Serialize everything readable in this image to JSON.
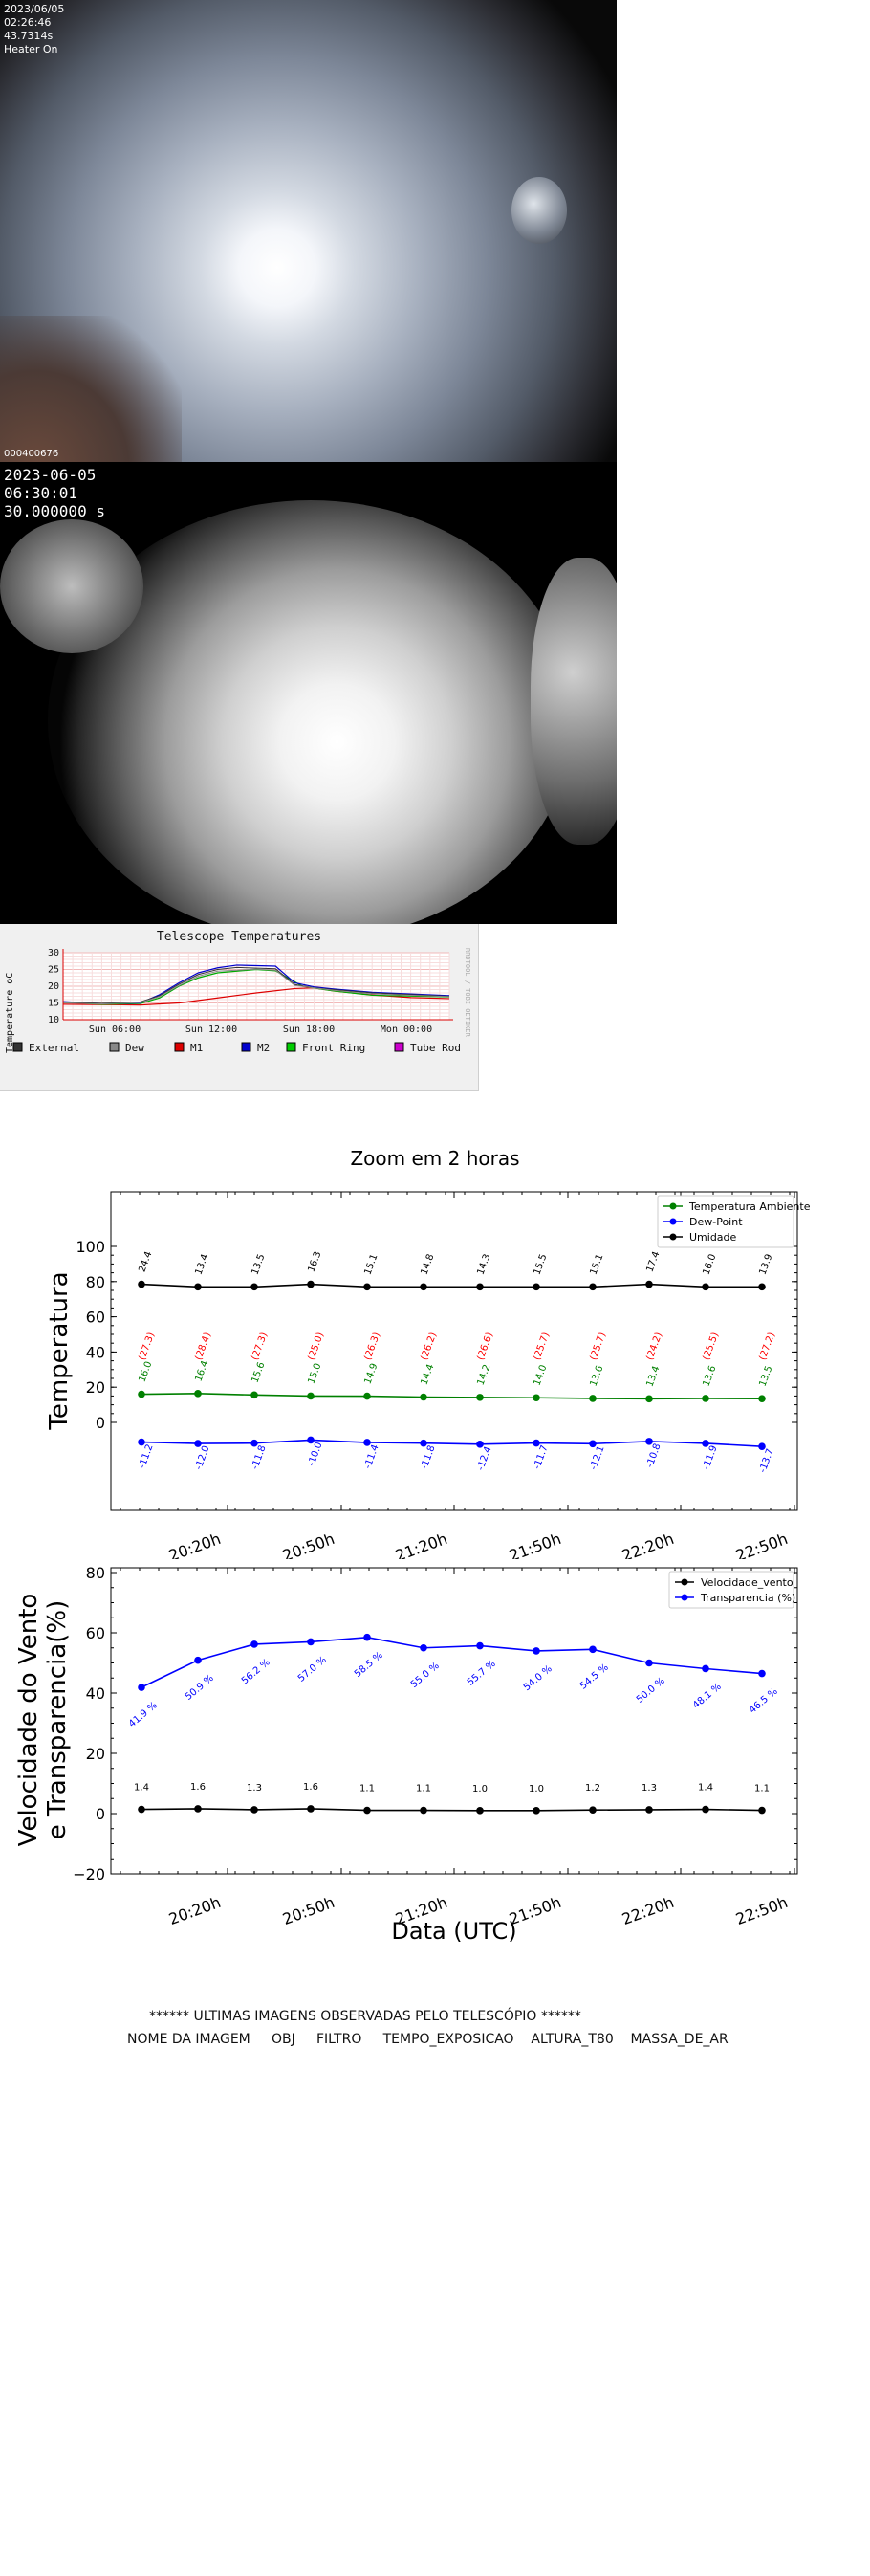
{
  "camera1": {
    "date": "2023/06/05",
    "time": "02:26:46",
    "exposure": "43.7314s",
    "heater": "Heater On",
    "frame_id": "000400676"
  },
  "camera2": {
    "date": "2023-06-05",
    "time": "06:30:01",
    "exposure": "30.000000 s"
  },
  "telescope": {
    "title": "Telescope Temperatures",
    "ylabel": "Temperature oC",
    "watermark": "RRDTOOL / TOBI OETIKER",
    "yticks": [
      "30",
      "25",
      "20",
      "15",
      "10"
    ],
    "xticks": [
      "Sun 06:00",
      "Sun 12:00",
      "Sun 18:00",
      "Mon 00:00"
    ],
    "legend": [
      {
        "label": "External",
        "color": "#333333"
      },
      {
        "label": "Dew",
        "color": "#888888"
      },
      {
        "label": "M1",
        "color": "#dd0000"
      },
      {
        "label": "M2",
        "color": "#0000cc"
      },
      {
        "label": "Front Ring",
        "color": "#00cc00"
      },
      {
        "label": "Tube Rod",
        "color": "#cc00cc"
      }
    ]
  },
  "zoom_title": "Zoom em 2 horas",
  "chart_data": [
    {
      "type": "line",
      "title": "Zoom em 2 horas",
      "ylabel": "Temperatura",
      "xlabel": "",
      "ylim": [
        -6,
        18
      ],
      "yticks": [
        "0",
        "20",
        "40",
        "60",
        "80",
        "100"
      ],
      "xticks": [
        "20:20h",
        "20:50h",
        "21:20h",
        "21:50h",
        "22:20h",
        "22:50h"
      ],
      "x": [
        "20:05",
        "20:20",
        "20:35",
        "20:50",
        "21:05",
        "21:20",
        "21:35",
        "21:50",
        "22:05",
        "22:20",
        "22:35",
        "22:50"
      ],
      "legend_position": "top-right",
      "series": [
        {
          "name": "Temperatura Ambiente",
          "color": "#008000",
          "values": [
            16.0,
            16.4,
            15.6,
            15.0,
            14.9,
            14.4,
            14.2,
            14.0,
            13.6,
            13.4,
            13.6,
            13.5
          ]
        },
        {
          "name": "Dew-Point",
          "color": "#0000ff",
          "values": [
            -11.2,
            -12.0,
            -11.8,
            -10.0,
            -11.4,
            -11.8,
            -12.4,
            -11.7,
            -12.1,
            -10.8,
            -11.9,
            -13.7
          ]
        },
        {
          "name": "Umidade",
          "color": "#000000",
          "values": [
            24.4,
            13.4,
            13.5,
            16.3,
            15.1,
            14.8,
            14.3,
            15.5,
            15.1,
            17.4,
            16.0,
            13.9
          ]
        }
      ],
      "extra_labels": {
        "color": "#ff0000",
        "values": [
          "(27.3)",
          "(28.4)",
          "(27.3)",
          "(25.0)",
          "(26.3)",
          "(26.2)",
          "(26.6)",
          "(25.7)",
          "(25.7)",
          "(24.2)",
          "(25.5)",
          "(27.2)"
        ]
      }
    },
    {
      "type": "line",
      "ylabel": "Velocidade do Vento\ne Transparencia(%)",
      "xlabel": "Data (UTC)",
      "ylim": [
        -20,
        83
      ],
      "yticks": [
        "−20",
        "0",
        "20",
        "40",
        "60",
        "80"
      ],
      "xticks": [
        "20:20h",
        "20:50h",
        "21:20h",
        "21:50h",
        "22:20h",
        "22:50h"
      ],
      "x": [
        "20:05",
        "20:20",
        "20:35",
        "20:50",
        "21:05",
        "21:20",
        "21:35",
        "21:50",
        "22:05",
        "22:20",
        "22:35",
        "22:50"
      ],
      "legend_position": "top-right",
      "series": [
        {
          "name": "Velocidade_vento",
          "color": "#000000",
          "values": [
            1.4,
            1.6,
            1.3,
            1.6,
            1.1,
            1.1,
            1.0,
            1.0,
            1.2,
            1.3,
            1.4,
            1.1
          ]
        },
        {
          "name": "Transparencia (%)",
          "color": "#0000ff",
          "values": [
            41.9,
            50.9,
            56.2,
            57.0,
            58.5,
            55.0,
            55.7,
            54.0,
            54.5,
            50.0,
            48.1,
            46.5
          ]
        }
      ],
      "label_suffix": " %"
    }
  ],
  "footer": {
    "header": "****** ULTIMAS IMAGENS OBSERVADAS PELO TELESCÓPIO ******",
    "columns": "NOME DA IMAGEM     OBJ     FILTRO     TEMPO_EXPOSICAO    ALTURA_T80    MASSA_DE_AR"
  }
}
